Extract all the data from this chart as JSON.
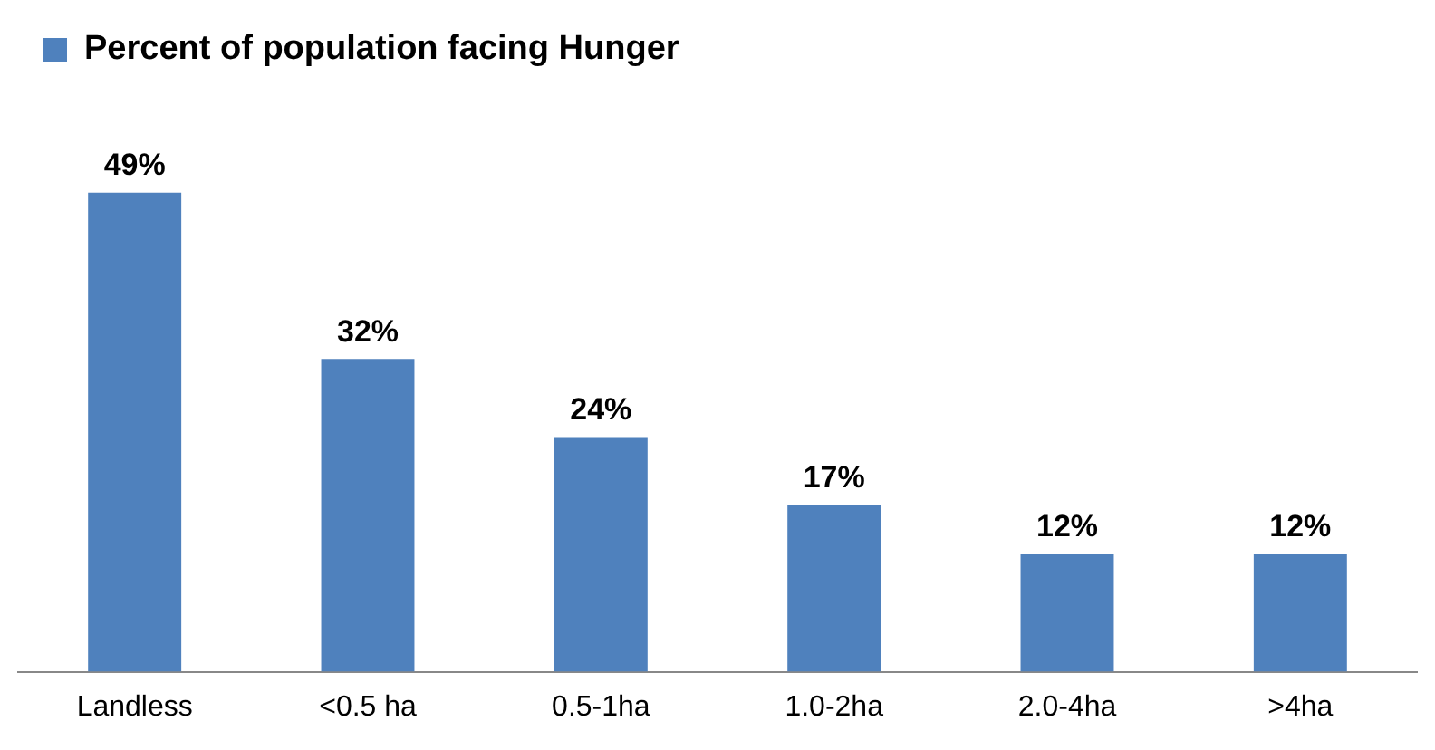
{
  "chart_data": {
    "type": "bar",
    "categories": [
      "Landless",
      "<0.5 ha",
      "0.5-1ha",
      "1.0-2ha",
      "2.0-4ha",
      ">4ha"
    ],
    "series": [
      {
        "name": "Percent of population facing Hunger",
        "color": "#4f81bd",
        "values": [
          49,
          32,
          24,
          17,
          12,
          12
        ],
        "value_labels": [
          "49%",
          "32%",
          "24%",
          "17%",
          "12%",
          "12%"
        ]
      }
    ],
    "legend": "top left",
    "grid": false
  }
}
